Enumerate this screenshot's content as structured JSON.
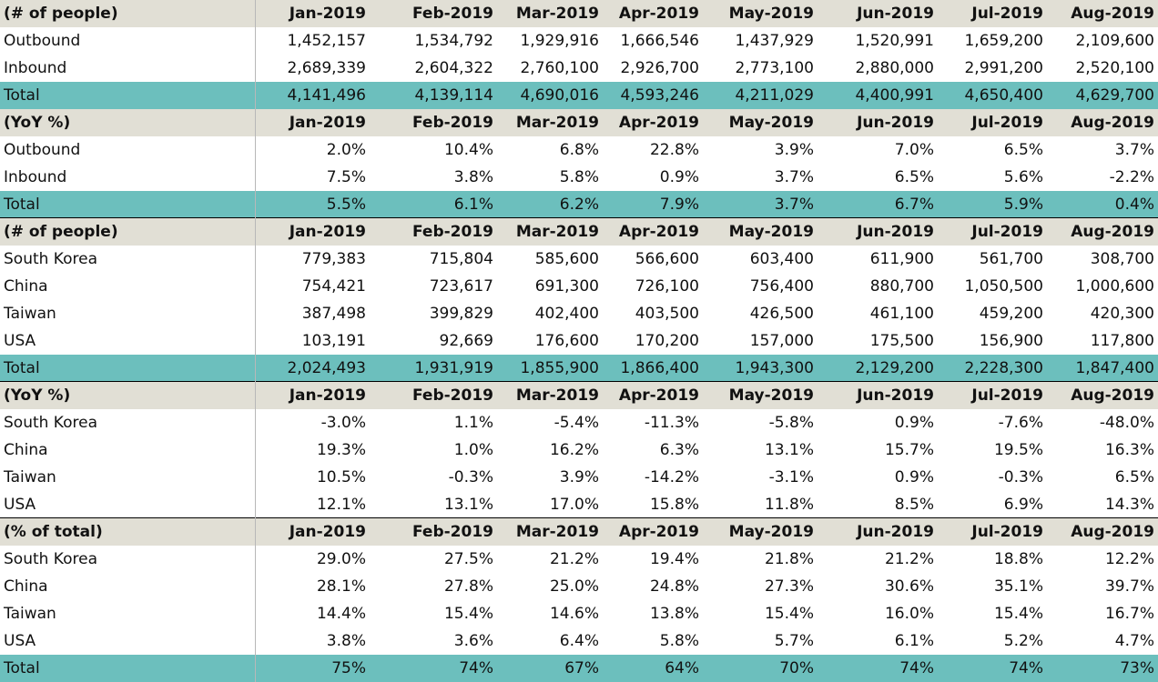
{
  "sections": [
    {
      "header": [
        "(# of people)",
        "Jan-2019",
        "Feb-2019",
        "Mar-2019",
        "Apr-2019",
        "May-2019",
        "Jun-2019",
        "Jul-2019",
        "Aug-2019"
      ],
      "rows": [
        [
          "Outbound",
          "1,452,157",
          "1,534,792",
          "1,929,916",
          "1,666,546",
          "1,437,929",
          "1,520,991",
          "1,659,200",
          "2,109,600"
        ],
        [
          "Inbound",
          "2,689,339",
          "2,604,322",
          "2,760,100",
          "2,926,700",
          "2,773,100",
          "2,880,000",
          "2,991,200",
          "2,520,100"
        ]
      ],
      "total": [
        "Total",
        "4,141,496",
        "4,139,114",
        "4,690,016",
        "4,593,246",
        "4,211,029",
        "4,400,991",
        "4,650,400",
        "4,629,700"
      ]
    },
    {
      "header": [
        "(YoY %)",
        "Jan-2019",
        "Feb-2019",
        "Mar-2019",
        "Apr-2019",
        "May-2019",
        "Jun-2019",
        "Jul-2019",
        "Aug-2019"
      ],
      "rows": [
        [
          "Outbound",
          "2.0%",
          "10.4%",
          "6.8%",
          "22.8%",
          "3.9%",
          "7.0%",
          "6.5%",
          "3.7%"
        ],
        [
          "Inbound",
          "7.5%",
          "3.8%",
          "5.8%",
          "0.9%",
          "3.7%",
          "6.5%",
          "5.6%",
          "-2.2%"
        ]
      ],
      "total": [
        "Total",
        "5.5%",
        "6.1%",
        "6.2%",
        "7.9%",
        "3.7%",
        "6.7%",
        "5.9%",
        "0.4%"
      ]
    },
    {
      "header": [
        "(# of people)",
        "Jan-2019",
        "Feb-2019",
        "Mar-2019",
        "Apr-2019",
        "May-2019",
        "Jun-2019",
        "Jul-2019",
        "Aug-2019"
      ],
      "rows": [
        [
          "South Korea",
          "779,383",
          "715,804",
          "585,600",
          "566,600",
          "603,400",
          "611,900",
          "561,700",
          "308,700"
        ],
        [
          "China",
          "754,421",
          "723,617",
          "691,300",
          "726,100",
          "756,400",
          "880,700",
          "1,050,500",
          "1,000,600"
        ],
        [
          "Taiwan",
          "387,498",
          "399,829",
          "402,400",
          "403,500",
          "426,500",
          "461,100",
          "459,200",
          "420,300"
        ],
        [
          "USA",
          "103,191",
          "92,669",
          "176,600",
          "170,200",
          "157,000",
          "175,500",
          "156,900",
          "117,800"
        ]
      ],
      "total": [
        "Total",
        "2,024,493",
        "1,931,919",
        "1,855,900",
        "1,866,400",
        "1,943,300",
        "2,129,200",
        "2,228,300",
        "1,847,400"
      ]
    },
    {
      "header": [
        "(YoY %)",
        "Jan-2019",
        "Feb-2019",
        "Mar-2019",
        "Apr-2019",
        "May-2019",
        "Jun-2019",
        "Jul-2019",
        "Aug-2019"
      ],
      "rows": [
        [
          "South Korea",
          "-3.0%",
          "1.1%",
          "-5.4%",
          "-11.3%",
          "-5.8%",
          "0.9%",
          "-7.6%",
          "-48.0%"
        ],
        [
          "China",
          "19.3%",
          "1.0%",
          "16.2%",
          "6.3%",
          "13.1%",
          "15.7%",
          "19.5%",
          "16.3%"
        ],
        [
          "Taiwan",
          "10.5%",
          "-0.3%",
          "3.9%",
          "-14.2%",
          "-3.1%",
          "0.9%",
          "-0.3%",
          "6.5%"
        ],
        [
          "USA",
          "12.1%",
          "13.1%",
          "17.0%",
          "15.8%",
          "11.8%",
          "8.5%",
          "6.9%",
          "14.3%"
        ]
      ],
      "total": null
    },
    {
      "header": [
        "(% of total)",
        "Jan-2019",
        "Feb-2019",
        "Mar-2019",
        "Apr-2019",
        "May-2019",
        "Jun-2019",
        "Jul-2019",
        "Aug-2019"
      ],
      "rows": [
        [
          "South Korea",
          "29.0%",
          "27.5%",
          "21.2%",
          "19.4%",
          "21.8%",
          "21.2%",
          "18.8%",
          "12.2%"
        ],
        [
          "China",
          "28.1%",
          "27.8%",
          "25.0%",
          "24.8%",
          "27.3%",
          "30.6%",
          "35.1%",
          "39.7%"
        ],
        [
          "Taiwan",
          "14.4%",
          "15.4%",
          "14.6%",
          "13.8%",
          "15.4%",
          "16.0%",
          "15.4%",
          "16.7%"
        ],
        [
          "USA",
          "3.8%",
          "3.6%",
          "6.4%",
          "5.8%",
          "5.7%",
          "6.1%",
          "5.2%",
          "4.7%"
        ]
      ],
      "total": [
        "Total",
        "75%",
        "74%",
        "67%",
        "64%",
        "70%",
        "74%",
        "74%",
        "73%"
      ]
    }
  ],
  "colors": {
    "header_bg": "#e1dfd5",
    "total_bg": "#6cbfbd"
  }
}
